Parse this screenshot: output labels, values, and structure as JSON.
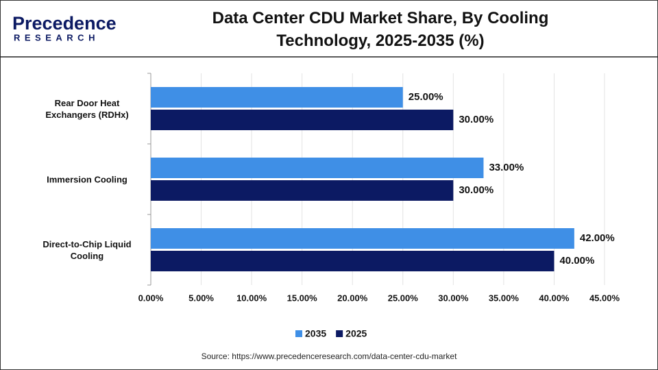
{
  "logo": {
    "name": "Precedence",
    "tagline": "RESEARCH"
  },
  "chart_data": {
    "type": "hbar",
    "title": "Data Center CDU Market Share, By Cooling Technology, 2025-2035 (%)",
    "source": "Source: https://www.precedenceresearch.com/data-center-cdu-market",
    "categories": [
      "Rear Door Heat Exchangers (RDHx)",
      "Immersion Cooling",
      "Direct-to-Chip Liquid Cooling"
    ],
    "series": [
      {
        "name": "2035",
        "color": "#3f8fe6",
        "values": [
          25,
          33,
          42
        ],
        "value_labels": [
          "25.00%",
          "33.00%",
          "42.00%"
        ]
      },
      {
        "name": "2025",
        "color": "#0c1a63",
        "values": [
          30,
          30,
          40
        ],
        "value_labels": [
          "30.00%",
          "30.00%",
          "40.00%"
        ]
      }
    ],
    "xlim": [
      0,
      45
    ],
    "xticks": [
      {
        "value": 0,
        "label": "0.00%"
      },
      {
        "value": 5,
        "label": "5.00%"
      },
      {
        "value": 10,
        "label": "10.00%"
      },
      {
        "value": 15,
        "label": "15.00%"
      },
      {
        "value": 20,
        "label": "20.00%"
      },
      {
        "value": 25,
        "label": "25.00%"
      },
      {
        "value": 30,
        "label": "30.00%"
      },
      {
        "value": 35,
        "label": "35.00%"
      },
      {
        "value": 40,
        "label": "40.00%"
      },
      {
        "value": 45,
        "label": "45.00%"
      }
    ],
    "grid": true
  }
}
